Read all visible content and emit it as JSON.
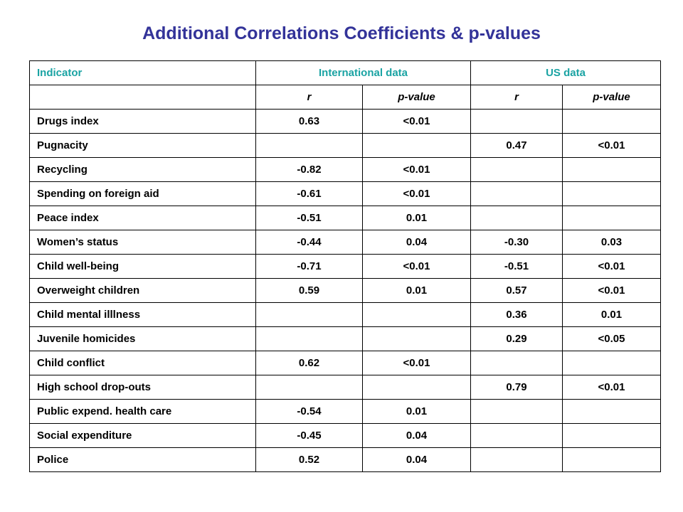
{
  "title": "Additional Correlations Coefficients & p-values",
  "header": {
    "indicator": "Indicator",
    "international": "International data",
    "us": "US data",
    "r": "r",
    "p": "p-value"
  },
  "rows": [
    {
      "name": "Drugs index",
      "int_r": "0.63",
      "int_p": "<0.01",
      "us_r": "",
      "us_p": ""
    },
    {
      "name": "Pugnacity",
      "int_r": "",
      "int_p": "",
      "us_r": "0.47",
      "us_p": "<0.01"
    },
    {
      "name": "Recycling",
      "int_r": "-0.82",
      "int_p": "<0.01",
      "us_r": "",
      "us_p": ""
    },
    {
      "name": "Spending on foreign aid",
      "int_r": "-0.61",
      "int_p": "<0.01",
      "us_r": "",
      "us_p": ""
    },
    {
      "name": "Peace index",
      "int_r": "-0.51",
      "int_p": "0.01",
      "us_r": "",
      "us_p": ""
    },
    {
      "name": "Women’s status",
      "int_r": "-0.44",
      "int_p": "0.04",
      "us_r": "-0.30",
      "us_p": "0.03"
    },
    {
      "name": "Child well-being",
      "int_r": "-0.71",
      "int_p": "<0.01",
      "us_r": "-0.51",
      "us_p": "<0.01"
    },
    {
      "name": "Overweight children",
      "int_r": "0.59",
      "int_p": "0.01",
      "us_r": "0.57",
      "us_p": "<0.01"
    },
    {
      "name": "Child mental illlness",
      "int_r": "",
      "int_p": "",
      "us_r": "0.36",
      "us_p": "0.01"
    },
    {
      "name": "Juvenile homicides",
      "int_r": "",
      "int_p": "",
      "us_r": "0.29",
      "us_p": "<0.05"
    },
    {
      "name": "Child conflict",
      "int_r": "0.62",
      "int_p": "<0.01",
      "us_r": "",
      "us_p": ""
    },
    {
      "name": "High school drop-outs",
      "int_r": "",
      "int_p": "",
      "us_r": "0.79",
      "us_p": "<0.01"
    },
    {
      "name": "Public expend. health care",
      "int_r": "-0.54",
      "int_p": "0.01",
      "us_r": "",
      "us_p": ""
    },
    {
      "name": "Social expenditure",
      "int_r": "-0.45",
      "int_p": "0.04",
      "us_r": "",
      "us_p": ""
    },
    {
      "name": "Police",
      "int_r": "0.52",
      "int_p": "0.04",
      "us_r": "",
      "us_p": ""
    }
  ]
}
